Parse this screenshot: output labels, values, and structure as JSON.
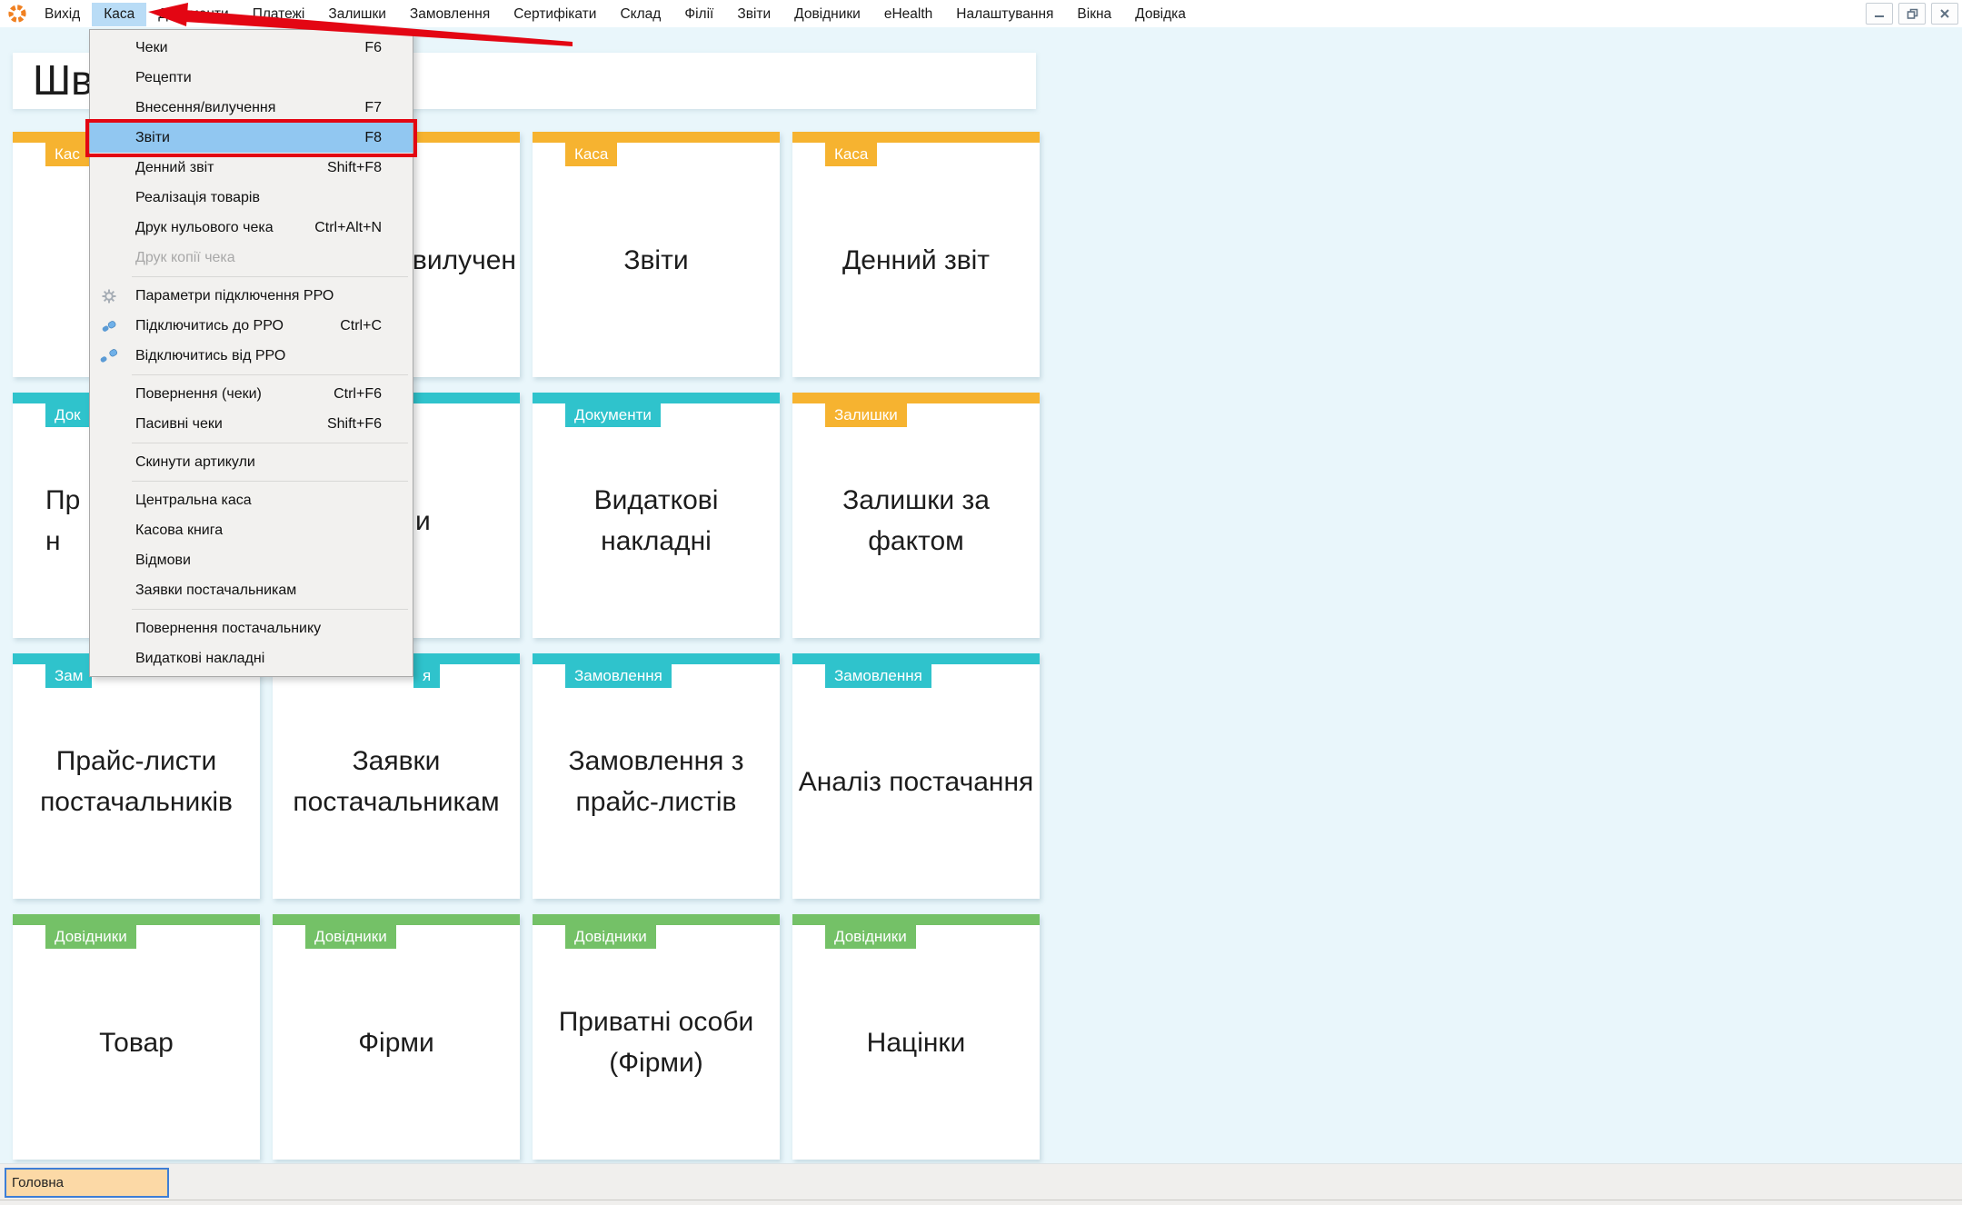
{
  "colors": {
    "yellow": "#F6B330",
    "teal": "#2FC3CC",
    "green": "#74C167",
    "red": "#E30613",
    "menu_highlight": "#91C7F1",
    "menubar_active": "#B9DCF6",
    "tab_bg": "#FCD9A6",
    "tab_border": "#3E7ED6",
    "page_bg": "#E9F6FB",
    "logo_orange": "#F08021"
  },
  "menubar": {
    "active_item": "Каса",
    "items": [
      "Вихід",
      "Каса",
      "Документи",
      "Платежі",
      "Залишки",
      "Замовлення",
      "Сертифікати",
      "Склад",
      "Філії",
      "Звіти",
      "Довідники",
      "eHealth",
      "Налаштування",
      "Вікна",
      "Довідка"
    ]
  },
  "window_controls": [
    {
      "name": "minimize"
    },
    {
      "name": "restore"
    },
    {
      "name": "close"
    }
  ],
  "dropdown_menu": {
    "items": [
      {
        "label": "Чеки",
        "shortcut": "F6"
      },
      {
        "label": "Рецепти"
      },
      {
        "label": "Внесення/вилучення",
        "shortcut": "F7"
      },
      {
        "label": "Звіти",
        "shortcut": "F8",
        "highlighted": true
      },
      {
        "label": "Денний звіт",
        "shortcut": "Shift+F8"
      },
      {
        "label": "Реалізація товарів"
      },
      {
        "label": "Друк нульового чека",
        "shortcut": "Ctrl+Alt+N"
      },
      {
        "label": "Друк копії чека",
        "disabled": true
      },
      {
        "separator": true
      },
      {
        "label": "Параметри підключення РРО",
        "icon": "gear"
      },
      {
        "label": "Підключитись до РРО",
        "shortcut": "Ctrl+C",
        "icon": "plug-connect"
      },
      {
        "label": "Відключитись від РРО",
        "icon": "plug-disconnect"
      },
      {
        "separator": true
      },
      {
        "label": "Повернення (чеки)",
        "shortcut": "Ctrl+F6"
      },
      {
        "label": "Пасивні чеки",
        "shortcut": "Shift+F6"
      },
      {
        "separator": true
      },
      {
        "label": "Скинути артикули"
      },
      {
        "separator": true
      },
      {
        "label": "Центральна каса"
      },
      {
        "label": "Касова книга"
      },
      {
        "label": "Відмови"
      },
      {
        "label": "Заявки постачальникам"
      },
      {
        "separator": true
      },
      {
        "label": "Повернення постачальнику"
      },
      {
        "label": "Видаткові накладні"
      }
    ]
  },
  "page": {
    "title": "Шв"
  },
  "tiles": [
    {
      "category": "Кас",
      "title": "",
      "color": "yellow"
    },
    {
      "category": null,
      "title": "вилучен",
      "color": "yellow"
    },
    {
      "category": "Каса",
      "title": "Звіти",
      "color": "yellow"
    },
    {
      "category": "Каса",
      "title": "Денний звіт",
      "color": "yellow"
    },
    {
      "category": "Док",
      "title": "Пр\nн",
      "color": "teal"
    },
    {
      "category": null,
      "title": "и",
      "color": "teal"
    },
    {
      "category": "Документи",
      "title": "Видаткові накладні",
      "color": "teal"
    },
    {
      "category": "Залишки",
      "title": "Залишки за фактом",
      "color": "yellow"
    },
    {
      "category": "Зам",
      "title": "Прайс-листи постачальників",
      "color": "teal"
    },
    {
      "category": "я",
      "title": "Заявки постачальникам",
      "color": "teal"
    },
    {
      "category": "Замовлення",
      "title": "Замовлення з прайс-листів",
      "color": "teal"
    },
    {
      "category": "Замовлення",
      "title": "Аналіз постачання",
      "color": "teal"
    },
    {
      "category": "Довідники",
      "title": "Товар",
      "color": "green"
    },
    {
      "category": "Довідники",
      "title": "Фірми",
      "color": "green"
    },
    {
      "category": "Довідники",
      "title": "Приватні особи (Фірми)",
      "color": "green"
    },
    {
      "category": "Довідники",
      "title": "Націнки",
      "color": "green"
    }
  ],
  "footer": {
    "tab": "Головна"
  }
}
